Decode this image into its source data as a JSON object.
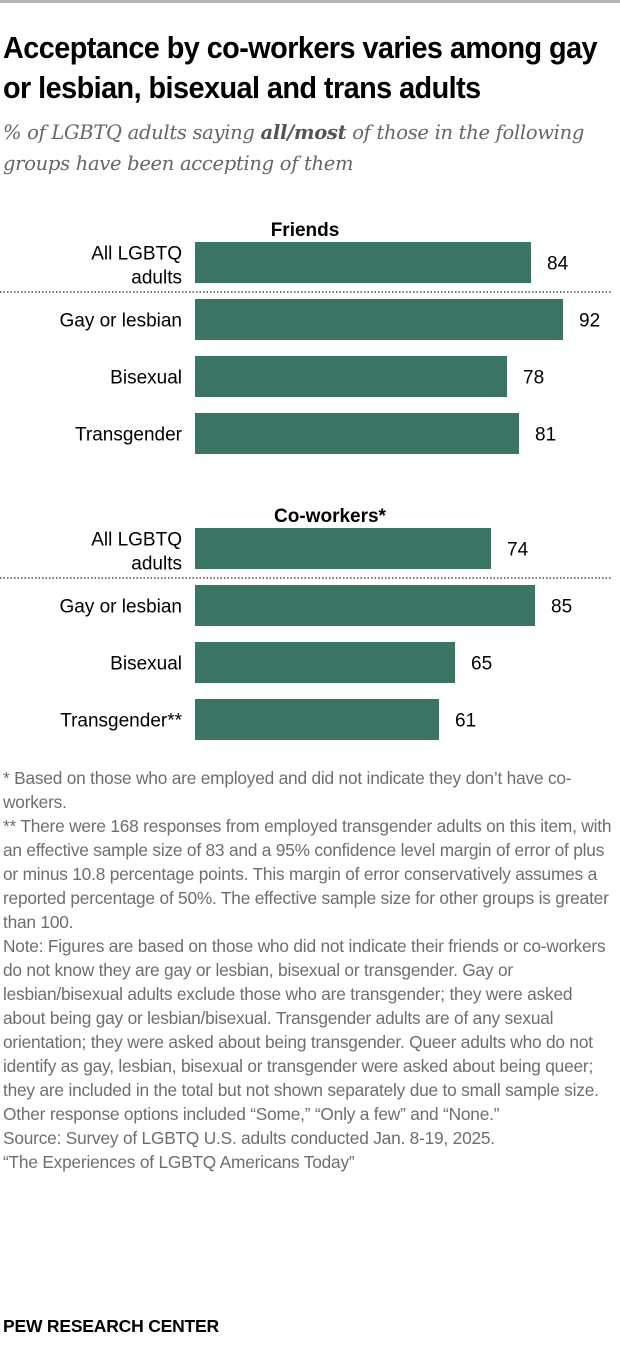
{
  "title": "Acceptance by co-workers varies among gay or lesbian, bisexual and trans adults",
  "subtitle": {
    "pre": "% of LGBTQ adults saying ",
    "bold": "all/most",
    "post": " of those in the following groups have been accepting of them"
  },
  "chart_data": {
    "type": "bar",
    "orientation": "horizontal",
    "color": "#3a7565",
    "xlim": [
      0,
      100
    ],
    "panels": [
      {
        "title": "Friends",
        "categories": [
          "All LGBTQ adults",
          "Gay or lesbian",
          "Bisexual",
          "Transgender"
        ],
        "values": [
          84,
          92,
          78,
          81
        ]
      },
      {
        "title": "Co-workers*",
        "categories": [
          "All LGBTQ adults",
          "Gay or lesbian",
          "Bisexual",
          "Transgender**"
        ],
        "values": [
          74,
          85,
          65,
          61
        ]
      }
    ]
  },
  "notes": [
    "* Based on those who are employed and did not indicate they don’t have co-workers.",
    "** There were 168 responses from employed transgender adults on this item, with an effective sample size of 83 and a 95% confidence level margin of error of plus or minus 10.8 percentage points. This margin of error conservatively assumes a reported percentage of 50%. The effective sample size for other groups is greater than 100.",
    "Note: Figures are based on those who did not indicate their friends or co-workers do not know they are gay or lesbian, bisexual or transgender. Gay or lesbian/bisexual adults exclude those who are transgender; they were asked about being gay or lesbian/bisexual. Transgender adults are of any sexual orientation; they were asked about being transgender. Queer adults who do not identify as gay, lesbian, bisexual or transgender were asked about being queer; they are included in the total but not shown separately due to small sample size. Other response options included “Some,” “Only a few” and “None.”",
    "Source: Survey of LGBTQ U.S. adults conducted Jan. 8-19, 2025.",
    "“The Experiences of LGBTQ Americans Today”"
  ],
  "footer": "PEW RESEARCH CENTER"
}
